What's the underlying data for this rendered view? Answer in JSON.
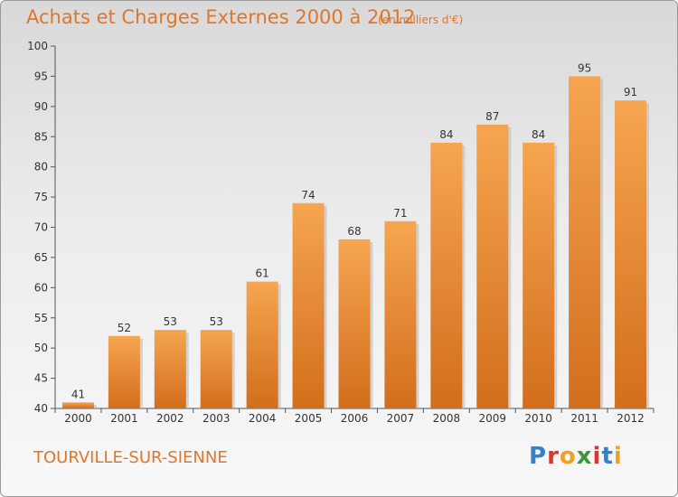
{
  "header": {
    "title": "Achats et Charges Externes 2000 à 2012",
    "unit": "(en milliers d'€)"
  },
  "footer": {
    "commune": "TOURVILLE-SUR-SIENNE",
    "logo_text": "Proxiti"
  },
  "colors": {
    "accent": "#e0762a",
    "bar_top": "#f6a550",
    "bar_bottom": "#d26e1c",
    "logo_letters": [
      "#3a7fc4",
      "#e2322c",
      "#f0a020",
      "#3a9a3a",
      "#e2322c",
      "#3a7fc4",
      "#f0a020"
    ]
  },
  "chart_data": {
    "type": "bar",
    "title": "Achats et Charges Externes 2000 à 2012",
    "subtitle": "(en milliers d'€)",
    "categories": [
      "2000",
      "2001",
      "2002",
      "2003",
      "2004",
      "2005",
      "2006",
      "2007",
      "2008",
      "2009",
      "2010",
      "2011",
      "2012"
    ],
    "values": [
      41,
      52,
      53,
      53,
      61,
      74,
      68,
      71,
      84,
      87,
      84,
      95,
      91
    ],
    "ylim": [
      40,
      100
    ],
    "yticks": [
      40,
      45,
      50,
      55,
      60,
      65,
      70,
      75,
      80,
      85,
      90,
      95,
      100
    ],
    "grid": false,
    "xlabel": "",
    "ylabel": ""
  }
}
